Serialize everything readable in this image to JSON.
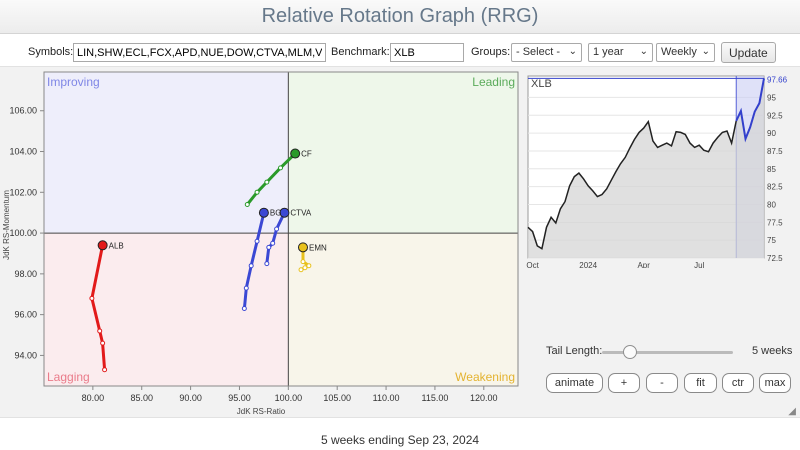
{
  "header": {
    "title": "Relative Rotation Graph (RRG)"
  },
  "controls": {
    "symbols_label": "Symbols:",
    "symbols_value": "LIN,SHW,ECL,FCX,APD,NUE,DOW,CTVA,MLM,VMC",
    "benchmark_label": "Benchmark:",
    "benchmark_value": "XLB",
    "groups_label": "Groups:",
    "groups_selected": "- Select -",
    "period_selected": "1 year",
    "frequency_selected": "Weekly",
    "update_label": "Update"
  },
  "chart_data": [
    {
      "type": "scatter",
      "name": "rrg",
      "xlabel": "JdK RS-Ratio",
      "ylabel": "JdK RS-Momentum",
      "xlim": [
        75,
        123.5
      ],
      "ylim": [
        92.5,
        107.9
      ],
      "center": [
        100,
        100
      ],
      "x_ticks": [
        80,
        85,
        90,
        95,
        100,
        105,
        110,
        115,
        120
      ],
      "y_ticks": [
        94,
        96,
        98,
        100,
        102,
        104,
        106
      ],
      "quadrants": {
        "improving": {
          "label": "Improving",
          "color": "#7f86e6",
          "bg": "#eeeefb"
        },
        "leading": {
          "label": "Leading",
          "color": "#5bab5b",
          "bg": "#eef7ea"
        },
        "weakening": {
          "label": "Weakening",
          "color": "#e4b330",
          "bg": "#f8f5ea"
        },
        "lagging": {
          "label": "Lagging",
          "color": "#ea7b8a",
          "bg": "#fbecee"
        }
      },
      "series": [
        {
          "name": "CF",
          "color": "#2a9a2a",
          "points": [
            [
              95.8,
              101.4
            ],
            [
              96.8,
              102.0
            ],
            [
              97.8,
              102.5
            ],
            [
              99.2,
              103.2
            ],
            [
              100.7,
              103.9
            ]
          ]
        },
        {
          "name": "CTVA",
          "color": "#3b48d4",
          "points": [
            [
              97.8,
              98.5
            ],
            [
              98.0,
              99.3
            ],
            [
              98.4,
              99.5
            ],
            [
              98.8,
              100.2
            ],
            [
              99.6,
              101.0
            ]
          ]
        },
        {
          "name": "BG",
          "color": "#3b48d4",
          "points": [
            [
              95.5,
              96.3
            ],
            [
              95.7,
              97.3
            ],
            [
              96.2,
              98.4
            ],
            [
              96.8,
              99.6
            ],
            [
              97.5,
              101.0
            ]
          ]
        },
        {
          "name": "EMN",
          "color": "#e8c11c",
          "points": [
            [
              101.3,
              98.2
            ],
            [
              101.7,
              98.3
            ],
            [
              102.1,
              98.4
            ],
            [
              101.5,
              98.6
            ],
            [
              101.5,
              99.3
            ]
          ]
        },
        {
          "name": "ALB",
          "color": "#e21a1a",
          "points": [
            [
              81.2,
              93.3
            ],
            [
              81.0,
              94.6
            ],
            [
              80.7,
              95.2
            ],
            [
              79.9,
              96.8
            ],
            [
              81.0,
              99.4
            ]
          ]
        }
      ]
    },
    {
      "type": "area",
      "name": "benchmark-price",
      "title": "XLB",
      "last_value": "97.66",
      "x_labels": [
        "Oct",
        "2024",
        "Apr",
        "Jul"
      ],
      "y_ticks": [
        72.5,
        75,
        77.5,
        80,
        82.5,
        85,
        87.5,
        90,
        92.5,
        95
      ],
      "ylim": [
        72.5,
        98.0
      ],
      "x": [
        0,
        1,
        2,
        3,
        4,
        5,
        6,
        7,
        8,
        9,
        10,
        11,
        12,
        13,
        14,
        15,
        16,
        17,
        18,
        19,
        20,
        21,
        22,
        23,
        24,
        25,
        26,
        27,
        28,
        29,
        30,
        31,
        32,
        33,
        34,
        35,
        36,
        37,
        38,
        39,
        40,
        41,
        42,
        43,
        44,
        45,
        46,
        47,
        48,
        49,
        50,
        51
      ],
      "values": [
        76.8,
        76.2,
        74.2,
        73.8,
        76.8,
        78.2,
        77.4,
        79.4,
        80.4,
        82.6,
        83.9,
        84.4,
        83.6,
        82.6,
        81.9,
        81.1,
        81.4,
        82.2,
        83.4,
        84.6,
        85.7,
        86.6,
        87.9,
        89.1,
        90.1,
        90.7,
        91.6,
        88.9,
        88.0,
        88.3,
        88.6,
        88.2,
        90.2,
        90.1,
        89.8,
        88.6,
        88.0,
        88.3,
        87.6,
        87.4,
        88.6,
        89.4,
        90.1,
        90.3,
        88.6,
        91.7,
        93.1,
        89.2,
        90.8,
        93.0,
        94.2,
        97.66
      ],
      "highlight_start": 45
    }
  ],
  "tail": {
    "label": "Tail Length:",
    "value_text": "5 weeks",
    "weeks": 5
  },
  "buttons": {
    "animate": "animate",
    "plus": "+",
    "minus": "-",
    "fit": "fit",
    "ctr": "ctr",
    "max": "max"
  },
  "footer": {
    "text": "5 weeks ending Sep 23, 2024"
  }
}
